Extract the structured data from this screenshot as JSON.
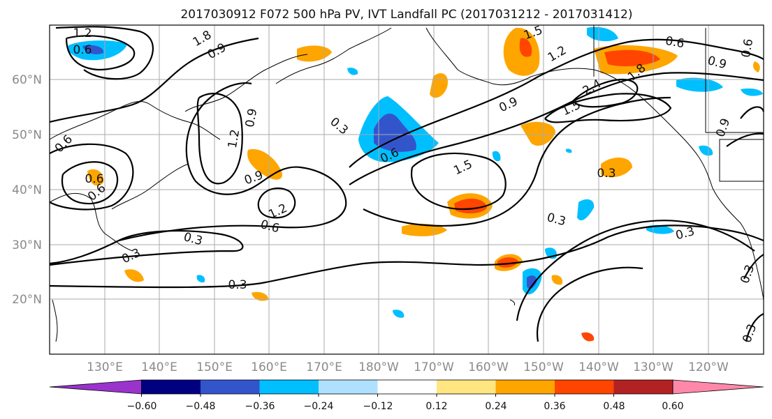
{
  "title": "2017030912 F072 500 hPa PV, IVT Landfall PC (2017031212 - 2017031412)",
  "lat_labels": [
    "60°N",
    "50°N",
    "40°N",
    "30°N",
    "20°N"
  ],
  "lon_labels": [
    "130°E",
    "140°E",
    "150°E",
    "160°E",
    "170°E",
    "180°W",
    "170°W",
    "160°W",
    "150°W",
    "140°W",
    "130°W",
    "120°W"
  ],
  "colorbar": {
    "tick_labels": [
      "−0.60",
      "−0.48",
      "−0.36",
      "−0.24",
      "−0.12",
      "0.12",
      "0.24",
      "0.36",
      "0.48",
      "0.60"
    ],
    "colors": [
      "#9933cc",
      "#000080",
      "#3355cc",
      "#00bfff",
      "#b0e0ff",
      "#ffffff",
      "#ffe680",
      "#ffa500",
      "#ff4500",
      "#b22222",
      "#ff88aa"
    ]
  },
  "contour_labels": [
    "0.6",
    "1.2",
    "1.8",
    "0.9",
    "0.9",
    "0.6",
    "0.6",
    "0.9",
    "1.2",
    "1.5",
    "0.3",
    "0.9",
    "0.6",
    "1.2",
    "0.6",
    "0.3",
    "0.3",
    "0.3",
    "0.6",
    "1.5",
    "1.5",
    "0.9",
    "1.2",
    "2.4",
    "1.8",
    "0.6",
    "0.9",
    "0.6",
    "0.3",
    "0.3",
    "0.3",
    "0.3",
    "0.3"
  ]
}
